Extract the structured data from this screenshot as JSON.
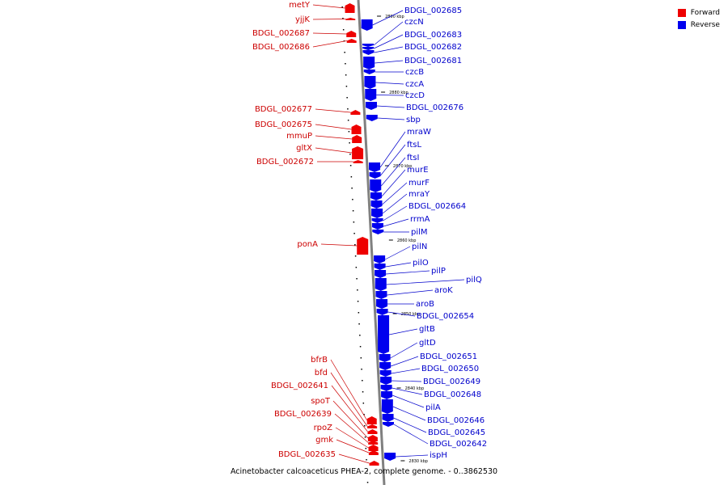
{
  "colors": {
    "forward": "#ee0000",
    "reverse": "#0000ee",
    "forward_label": "#cc0000",
    "reverse_label": "#0000cc",
    "backbone": "#808080"
  },
  "legend": {
    "forward": "Forward",
    "reverse": "Reverse"
  },
  "caption": "Acinetobacter calcoaceticus PHEA-2, complete genome. - 0..3862530",
  "ticks": [
    "2890 kbp",
    "2880 kbp",
    "2870 kbp",
    "2860 kbp",
    "2850 kbp",
    "2840 kbp",
    "2830 kbp"
  ],
  "forward_genes": [
    "metY",
    "yjjK",
    "BDGL_002687",
    "BDGL_002686",
    "BDGL_002677",
    "BDGL_002675",
    "mmuP",
    "gltX",
    "BDGL_002672",
    "ponA",
    "bfrB",
    "bfd",
    "BDGL_002641",
    "spoT",
    "BDGL_002639",
    "rpoZ",
    "gmk",
    "BDGL_002635"
  ],
  "reverse_genes": [
    "BDGL_002685",
    "czcN",
    "BDGL_002683",
    "BDGL_002682",
    "BDGL_002681",
    "czcB",
    "czcA",
    "czcD",
    "BDGL_002676",
    "sbp",
    "mraW",
    "ftsL",
    "ftsI",
    "murE",
    "murF",
    "mraY",
    "BDGL_002664",
    "rrmA",
    "pilM",
    "pilN",
    "pilO",
    "pilP",
    "pilQ",
    "aroK",
    "aroB",
    "BDGL_002654",
    "gltB",
    "gltD",
    "BDGL_002651",
    "BDGL_002650",
    "BDGL_002649",
    "BDGL_002648",
    "pilA",
    "BDGL_002646",
    "BDGL_002645",
    "BDGL_002642",
    "ispH"
  ]
}
